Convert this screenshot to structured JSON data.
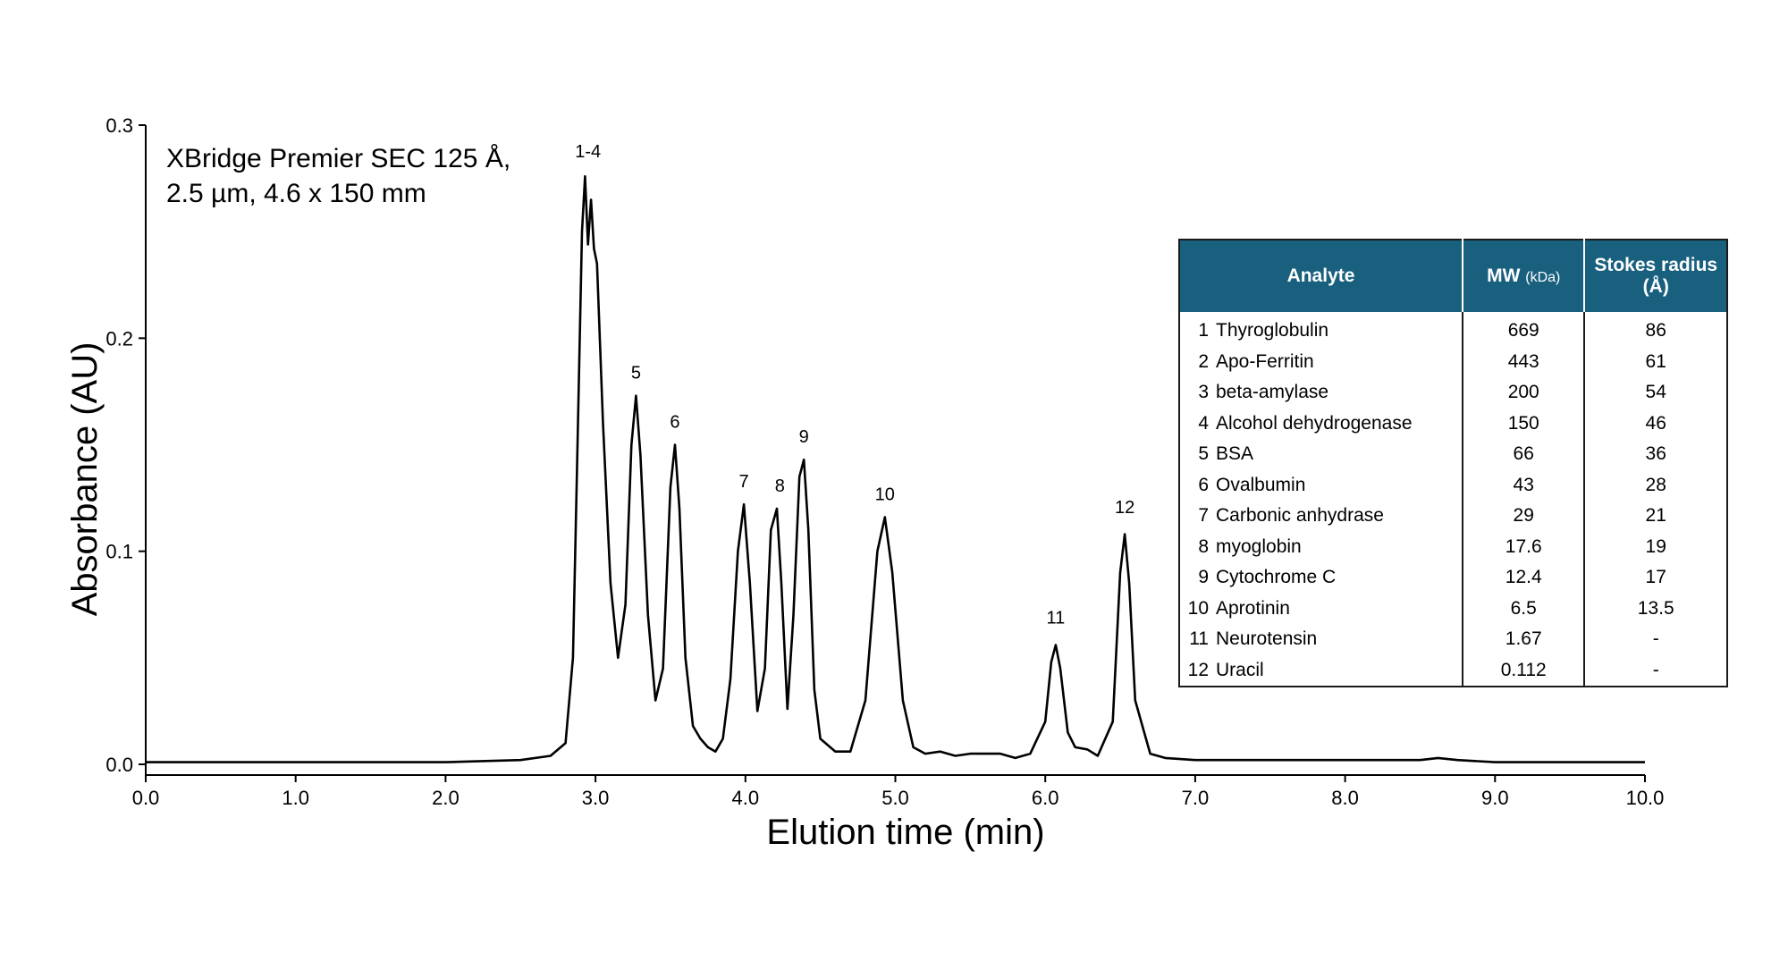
{
  "chart_data": {
    "type": "line",
    "title": "",
    "annotation": [
      "XBridge Premier SEC 125 Å,",
      "2.5 µm, 4.6 x 150 mm"
    ],
    "xlabel": "Elution time (min)",
    "ylabel": "Absorbance (AU)",
    "xlim": [
      0,
      10
    ],
    "ylim": [
      0,
      0.3
    ],
    "x_ticks": [
      "0.0",
      "1.0",
      "2.0",
      "3.0",
      "4.0",
      "5.0",
      "6.0",
      "7.0",
      "8.0",
      "9.0",
      "10.0"
    ],
    "y_ticks": [
      "0.0",
      "0.1",
      "0.2",
      "0.3"
    ],
    "grid": false,
    "legend": "none",
    "line_color": "#000000",
    "x": [
      0.0,
      2.0,
      2.5,
      2.7,
      2.8,
      2.85,
      2.88,
      2.91,
      2.93,
      2.95,
      2.97,
      2.99,
      3.01,
      3.05,
      3.1,
      3.15,
      3.2,
      3.24,
      3.27,
      3.3,
      3.35,
      3.4,
      3.45,
      3.5,
      3.53,
      3.56,
      3.6,
      3.65,
      3.7,
      3.75,
      3.8,
      3.85,
      3.9,
      3.95,
      3.99,
      4.03,
      4.08,
      4.13,
      4.17,
      4.21,
      4.24,
      4.28,
      4.32,
      4.36,
      4.39,
      4.42,
      4.46,
      4.5,
      4.6,
      4.7,
      4.8,
      4.88,
      4.93,
      4.98,
      5.05,
      5.12,
      5.2,
      5.3,
      5.4,
      5.5,
      5.6,
      5.7,
      5.8,
      5.9,
      6.0,
      6.04,
      6.07,
      6.1,
      6.15,
      6.2,
      6.28,
      6.35,
      6.45,
      6.5,
      6.53,
      6.56,
      6.6,
      6.7,
      6.8,
      7.0,
      7.3,
      7.5,
      8.0,
      8.5,
      8.62,
      8.75,
      9.0,
      10.0
    ],
    "y": [
      0.001,
      0.001,
      0.002,
      0.004,
      0.01,
      0.05,
      0.15,
      0.25,
      0.276,
      0.244,
      0.265,
      0.242,
      0.235,
      0.16,
      0.085,
      0.05,
      0.075,
      0.15,
      0.173,
      0.145,
      0.07,
      0.03,
      0.045,
      0.13,
      0.15,
      0.12,
      0.05,
      0.018,
      0.012,
      0.008,
      0.006,
      0.012,
      0.04,
      0.1,
      0.122,
      0.085,
      0.025,
      0.045,
      0.11,
      0.12,
      0.085,
      0.026,
      0.07,
      0.135,
      0.143,
      0.11,
      0.035,
      0.012,
      0.006,
      0.006,
      0.03,
      0.1,
      0.116,
      0.09,
      0.03,
      0.008,
      0.005,
      0.006,
      0.004,
      0.005,
      0.005,
      0.005,
      0.003,
      0.005,
      0.02,
      0.048,
      0.056,
      0.045,
      0.015,
      0.008,
      0.007,
      0.004,
      0.02,
      0.09,
      0.108,
      0.085,
      0.03,
      0.005,
      0.003,
      0.002,
      0.002,
      0.002,
      0.002,
      0.002,
      0.003,
      0.002,
      0.001,
      0.001
    ],
    "peak_labels": [
      {
        "label": "1-4",
        "x": 2.95,
        "y": 0.285
      },
      {
        "label": "5",
        "x": 3.27,
        "y": 0.181
      },
      {
        "label": "6",
        "x": 3.53,
        "y": 0.158
      },
      {
        "label": "7",
        "x": 3.99,
        "y": 0.13
      },
      {
        "label": "8",
        "x": 4.23,
        "y": 0.128
      },
      {
        "label": "9",
        "x": 4.39,
        "y": 0.151
      },
      {
        "label": "10",
        "x": 4.93,
        "y": 0.124
      },
      {
        "label": "11",
        "x": 6.07,
        "y": 0.066
      },
      {
        "label": "12",
        "x": 6.53,
        "y": 0.118
      }
    ]
  },
  "table": {
    "headers": {
      "analyte": "Analyte",
      "mw": "MW",
      "mw_unit": "(kDa)",
      "stokes": "Stokes radius",
      "stokes_unit": "(Å)"
    },
    "rows": [
      {
        "num": "1",
        "name": "Thyroglobulin",
        "mw": "669",
        "sr": "86"
      },
      {
        "num": "2",
        "name": "Apo-Ferritin",
        "mw": "443",
        "sr": "61"
      },
      {
        "num": "3",
        "name": "beta-amylase",
        "mw": "200",
        "sr": "54"
      },
      {
        "num": "4",
        "name": "Alcohol dehydrogenase",
        "mw": "150",
        "sr": "46"
      },
      {
        "num": "5",
        "name": "BSA",
        "mw": "66",
        "sr": "36"
      },
      {
        "num": "6",
        "name": "Ovalbumin",
        "mw": "43",
        "sr": "28"
      },
      {
        "num": "7",
        "name": "Carbonic anhydrase",
        "mw": "29",
        "sr": "21"
      },
      {
        "num": "8",
        "name": "myoglobin",
        "mw": "17.6",
        "sr": "19"
      },
      {
        "num": "9",
        "name": "Cytochrome C",
        "mw": "12.4",
        "sr": "17"
      },
      {
        "num": "10",
        "name": "Aprotinin",
        "mw": "6.5",
        "sr": "13.5"
      },
      {
        "num": "11",
        "name": "Neurotensin",
        "mw": "1.67",
        "sr": "-"
      },
      {
        "num": "12",
        "name": "Uracil",
        "mw": "0.112",
        "sr": "-"
      }
    ]
  }
}
